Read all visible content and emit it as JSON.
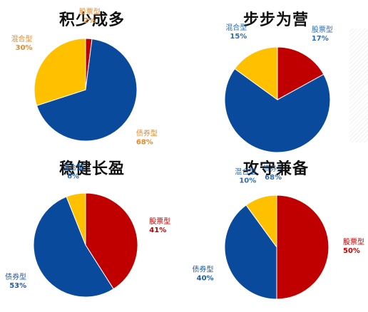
{
  "legend_colors": {
    "股票型": "#C00000",
    "债券型": "#0A4A9C",
    "混合型": "#FFC000"
  },
  "label_colors": {
    "股票型": "#C00000",
    "债券型": "#1F5AA6",
    "混合型": "#2E6DB4"
  },
  "chart_data": [
    {
      "type": "pie",
      "title": "积少成多",
      "slices": [
        {
          "name": "股票型",
          "value": 2,
          "label": "2%",
          "color": "#C00000",
          "label_color": "#E28A2E"
        },
        {
          "name": "债券型",
          "value": 68,
          "label": "68%",
          "color": "#0A4A9C",
          "label_color": "#E28A2E"
        },
        {
          "name": "混合型",
          "value": 30,
          "label": "30%",
          "color": "#FFC000",
          "label_color": "#E28A2E"
        }
      ]
    },
    {
      "type": "pie",
      "title": "步步为营",
      "slices": [
        {
          "name": "股票型",
          "value": 17,
          "label": "17%",
          "color": "#C00000",
          "label_color": "#2E6DB4"
        },
        {
          "name": "债券型",
          "value": 68,
          "label": "68%",
          "color": "#0A4A9C",
          "label_color": "#2E6DB4"
        },
        {
          "name": "混合型",
          "value": 15,
          "label": "15%",
          "color": "#FFC000",
          "label_color": "#2E6DB4"
        }
      ]
    },
    {
      "type": "pie",
      "title": "稳健长盈",
      "slices": [
        {
          "name": "股票型",
          "value": 41,
          "label": "41%",
          "color": "#C00000",
          "label_color": "#C00000"
        },
        {
          "name": "债券型",
          "value": 53,
          "label": "53%",
          "color": "#0A4A9C",
          "label_color": "#1F5AA6"
        },
        {
          "name": "混合型",
          "value": 6,
          "label": "6%",
          "color": "#FFC000",
          "label_color": "#2E6DB4"
        }
      ]
    },
    {
      "type": "pie",
      "title": "攻守兼备",
      "slices": [
        {
          "name": "股票型",
          "value": 50,
          "label": "50%",
          "color": "#C00000",
          "label_color": "#C00000"
        },
        {
          "name": "债券型",
          "value": 40,
          "label": "40%",
          "color": "#0A4A9C",
          "label_color": "#1F5AA6"
        },
        {
          "name": "混合型",
          "value": 10,
          "label": "10%",
          "color": "#FFC000",
          "label_color": "#2E6DB4"
        }
      ]
    }
  ]
}
